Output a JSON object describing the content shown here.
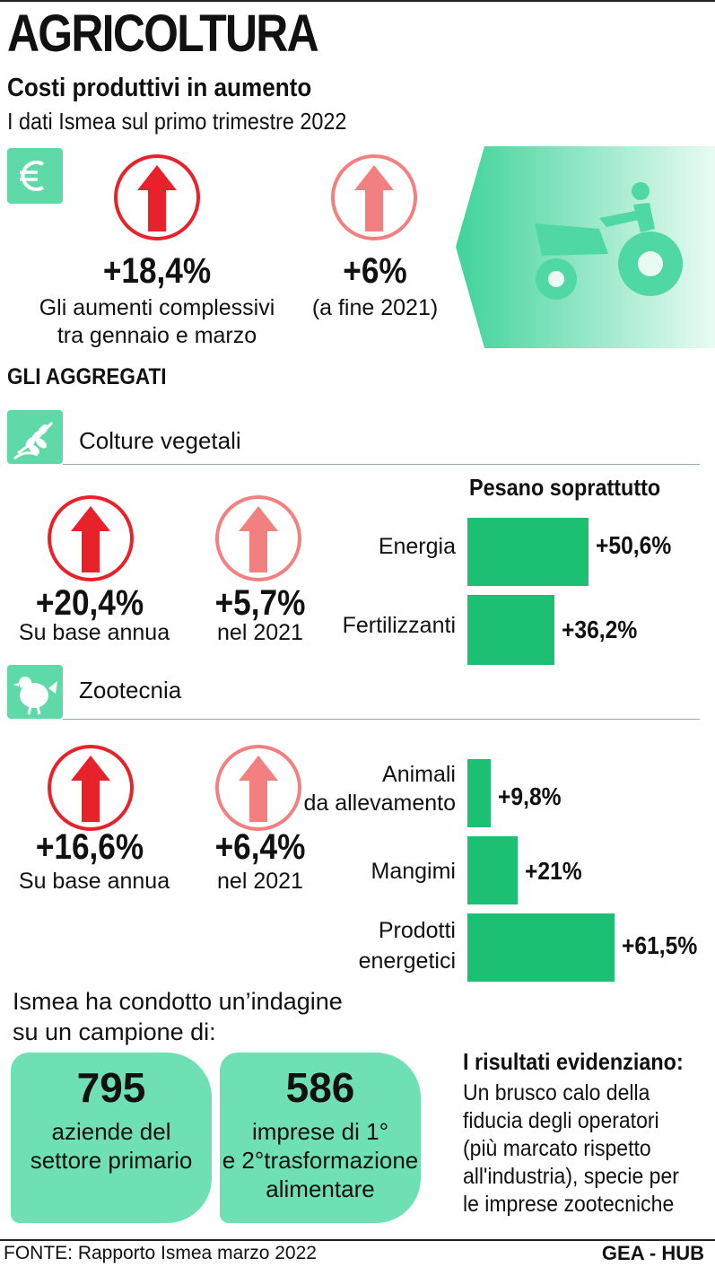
{
  "header": {
    "title": "AGRICOLTURA",
    "subtitle": "Costi produttivi in aumento",
    "subsubtitle": "I dati Ismea sul primo trimestre 2022"
  },
  "overall": {
    "icon": "euro-icon",
    "main_value": "+18,4%",
    "main_caption_1": "Gli aumenti complessivi",
    "main_caption_2": "tra gennaio e marzo",
    "prev_value": "+6%",
    "prev_caption": "(a fine 2021)"
  },
  "section_title": "GLI AGGREGATI",
  "colture": {
    "icon": "wheat-icon",
    "label": "Colture vegetali",
    "annual_value": "+20,4%",
    "annual_caption": "Su base annua",
    "year_value": "+5,7%",
    "year_caption": "nel 2021",
    "pesano_title": "Pesano soprattutto",
    "bars": [
      {
        "label": "Energia",
        "value": 50.6,
        "value_text": "+50,6%"
      },
      {
        "label": "Fertilizzanti",
        "value": 36.2,
        "value_text": "+36,2%"
      }
    ]
  },
  "zootecnia": {
    "icon": "chicken-icon",
    "label": "Zootecnia",
    "annual_value": "+16,6%",
    "annual_caption": "Su base annua",
    "year_value": "+6,4%",
    "year_caption": "nel 2021",
    "bars": [
      {
        "label_1": "Animali",
        "label_2": "da allevamento",
        "value": 9.8,
        "value_text": "+9,8%"
      },
      {
        "label_1": "Mangimi",
        "label_2": "",
        "value": 21,
        "value_text": "+21%"
      },
      {
        "label_1": "Prodotti",
        "label_2": "energetici",
        "value": 61.5,
        "value_text": "+61,5%"
      }
    ]
  },
  "survey": {
    "intro_1": "Ismea ha condotto un’indagine",
    "intro_2": "su un campione di:",
    "box1_num": "795",
    "box1_text_1": "aziende del",
    "box1_text_2": "settore primario",
    "box2_num": "586",
    "box2_text_1": "imprese di 1°",
    "box2_text_2": "e 2°trasformazione",
    "box2_text_3": "alimentare"
  },
  "results": {
    "heading": "I risultati evidenziano:",
    "lines": [
      "Un brusco calo della",
      "fiducia degli operatori",
      "(più marcato rispetto",
      "all'industria), specie per",
      "le imprese zootecniche"
    ]
  },
  "footer": {
    "source": "FONTE: Rapporto Ismea marzo 2022",
    "credit": "GEA - HUB"
  },
  "colors": {
    "accent_green": "#1dbf73",
    "light_green": "#6fe0b3",
    "arrow_red": "#e8222b",
    "arrow_light_red": "#f38080"
  }
}
